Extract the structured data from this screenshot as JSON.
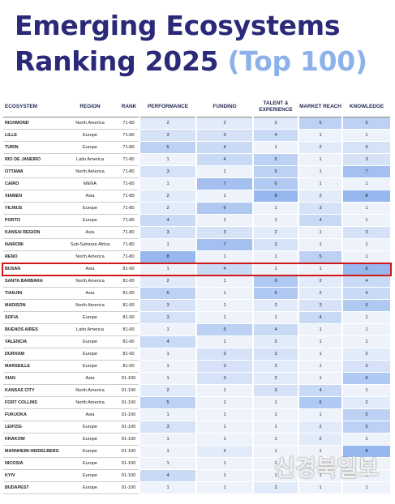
{
  "title": {
    "line1": "Emerging Ecosystems",
    "line2": "Ranking 2025",
    "highlight": "(Top 100)"
  },
  "table": {
    "columns": [
      "ECOSYSTEM",
      "REGION",
      "RANK",
      "PERFORMANCE",
      "FUNDING",
      "TALENT & EXPERIENCE",
      "MARKET REACH",
      "KNOWLEDGE"
    ],
    "rows": [
      [
        "RICHMOND",
        "North America",
        "71-80",
        2,
        2,
        2,
        5,
        5
      ],
      [
        "LILLE",
        "Europe",
        "71-80",
        3,
        3,
        4,
        1,
        1
      ],
      [
        "TURIN",
        "Europe",
        "71-80",
        5,
        4,
        1,
        2,
        3
      ],
      [
        "RIO DE JANEIRO",
        "Latin America",
        "71-80",
        1,
        4,
        5,
        1,
        3
      ],
      [
        "OTTAWA",
        "North America",
        "71-80",
        3,
        1,
        5,
        1,
        7
      ],
      [
        "CAIRO",
        "MENA",
        "71-80",
        1,
        7,
        6,
        1,
        1
      ],
      [
        "XIAMEN",
        "Asia",
        "71-80",
        2,
        1,
        8,
        2,
        8
      ],
      [
        "VILNIUS",
        "Europe",
        "71-80",
        2,
        6,
        1,
        3,
        1
      ],
      [
        "PORTO",
        "Europe",
        "71-80",
        4,
        1,
        1,
        4,
        1
      ],
      [
        "KANSAI REGION",
        "Asia",
        "71-80",
        3,
        3,
        2,
        1,
        3
      ],
      [
        "NAIROBI",
        "Sub-Saharan Africa",
        "71-80",
        1,
        7,
        3,
        1,
        1
      ],
      [
        "RENO",
        "North America",
        "71-80",
        8,
        1,
        1,
        5,
        1
      ],
      [
        "BUSAN",
        "Asia",
        "81-90",
        1,
        4,
        1,
        1,
        8
      ],
      [
        "SANTA BARBARA",
        "North America",
        "81-90",
        2,
        1,
        6,
        2,
        4
      ],
      [
        "TIANJIN",
        "Asia",
        "81-90",
        5,
        1,
        6,
        2,
        4
      ],
      [
        "MADISON",
        "North America",
        "81-90",
        3,
        1,
        2,
        3,
        6
      ],
      [
        "SOFIA",
        "Europe",
        "81-90",
        3,
        1,
        1,
        4,
        1
      ],
      [
        "BUENOS AIRES",
        "Latin America",
        "81-90",
        1,
        5,
        4,
        1,
        1
      ],
      [
        "VALENCIA",
        "Europe",
        "81-90",
        4,
        1,
        2,
        1,
        1
      ],
      [
        "DURHAM",
        "Europe",
        "81-90",
        1,
        3,
        3,
        1,
        2
      ],
      [
        "MARSEILLE",
        "Europe",
        "81-90",
        1,
        3,
        2,
        1,
        3
      ],
      [
        "XIAN",
        "Asia",
        "91-100",
        1,
        3,
        2,
        1,
        6
      ],
      [
        "KANSAS CITY",
        "North America",
        "91-100",
        2,
        1,
        3,
        4,
        1
      ],
      [
        "FORT COLLINS",
        "North America",
        "91-100",
        5,
        1,
        1,
        6,
        2
      ],
      [
        "FUKUOKA",
        "Asia",
        "91-100",
        1,
        1,
        1,
        1,
        5
      ],
      [
        "LEIPZIG",
        "Europe",
        "91-100",
        3,
        1,
        1,
        2,
        5
      ],
      [
        "KRAKOW",
        "Europe",
        "91-100",
        1,
        1,
        1,
        2,
        1
      ],
      [
        "MANNHEIM-HEIDELBERG",
        "Europe",
        "91-100",
        1,
        2,
        1,
        1,
        8
      ],
      [
        "NICOSIA",
        "Europe",
        "91-100",
        1,
        1,
        1,
        1,
        1
      ],
      [
        "KYIV",
        "Europe",
        "91-100",
        4,
        1,
        1,
        1,
        1
      ],
      [
        "BUDAPEST",
        "Europe",
        "91-100",
        1,
        1,
        2,
        1,
        1
      ]
    ],
    "highlighted_row": 12
  },
  "watermark": "신경북일보"
}
